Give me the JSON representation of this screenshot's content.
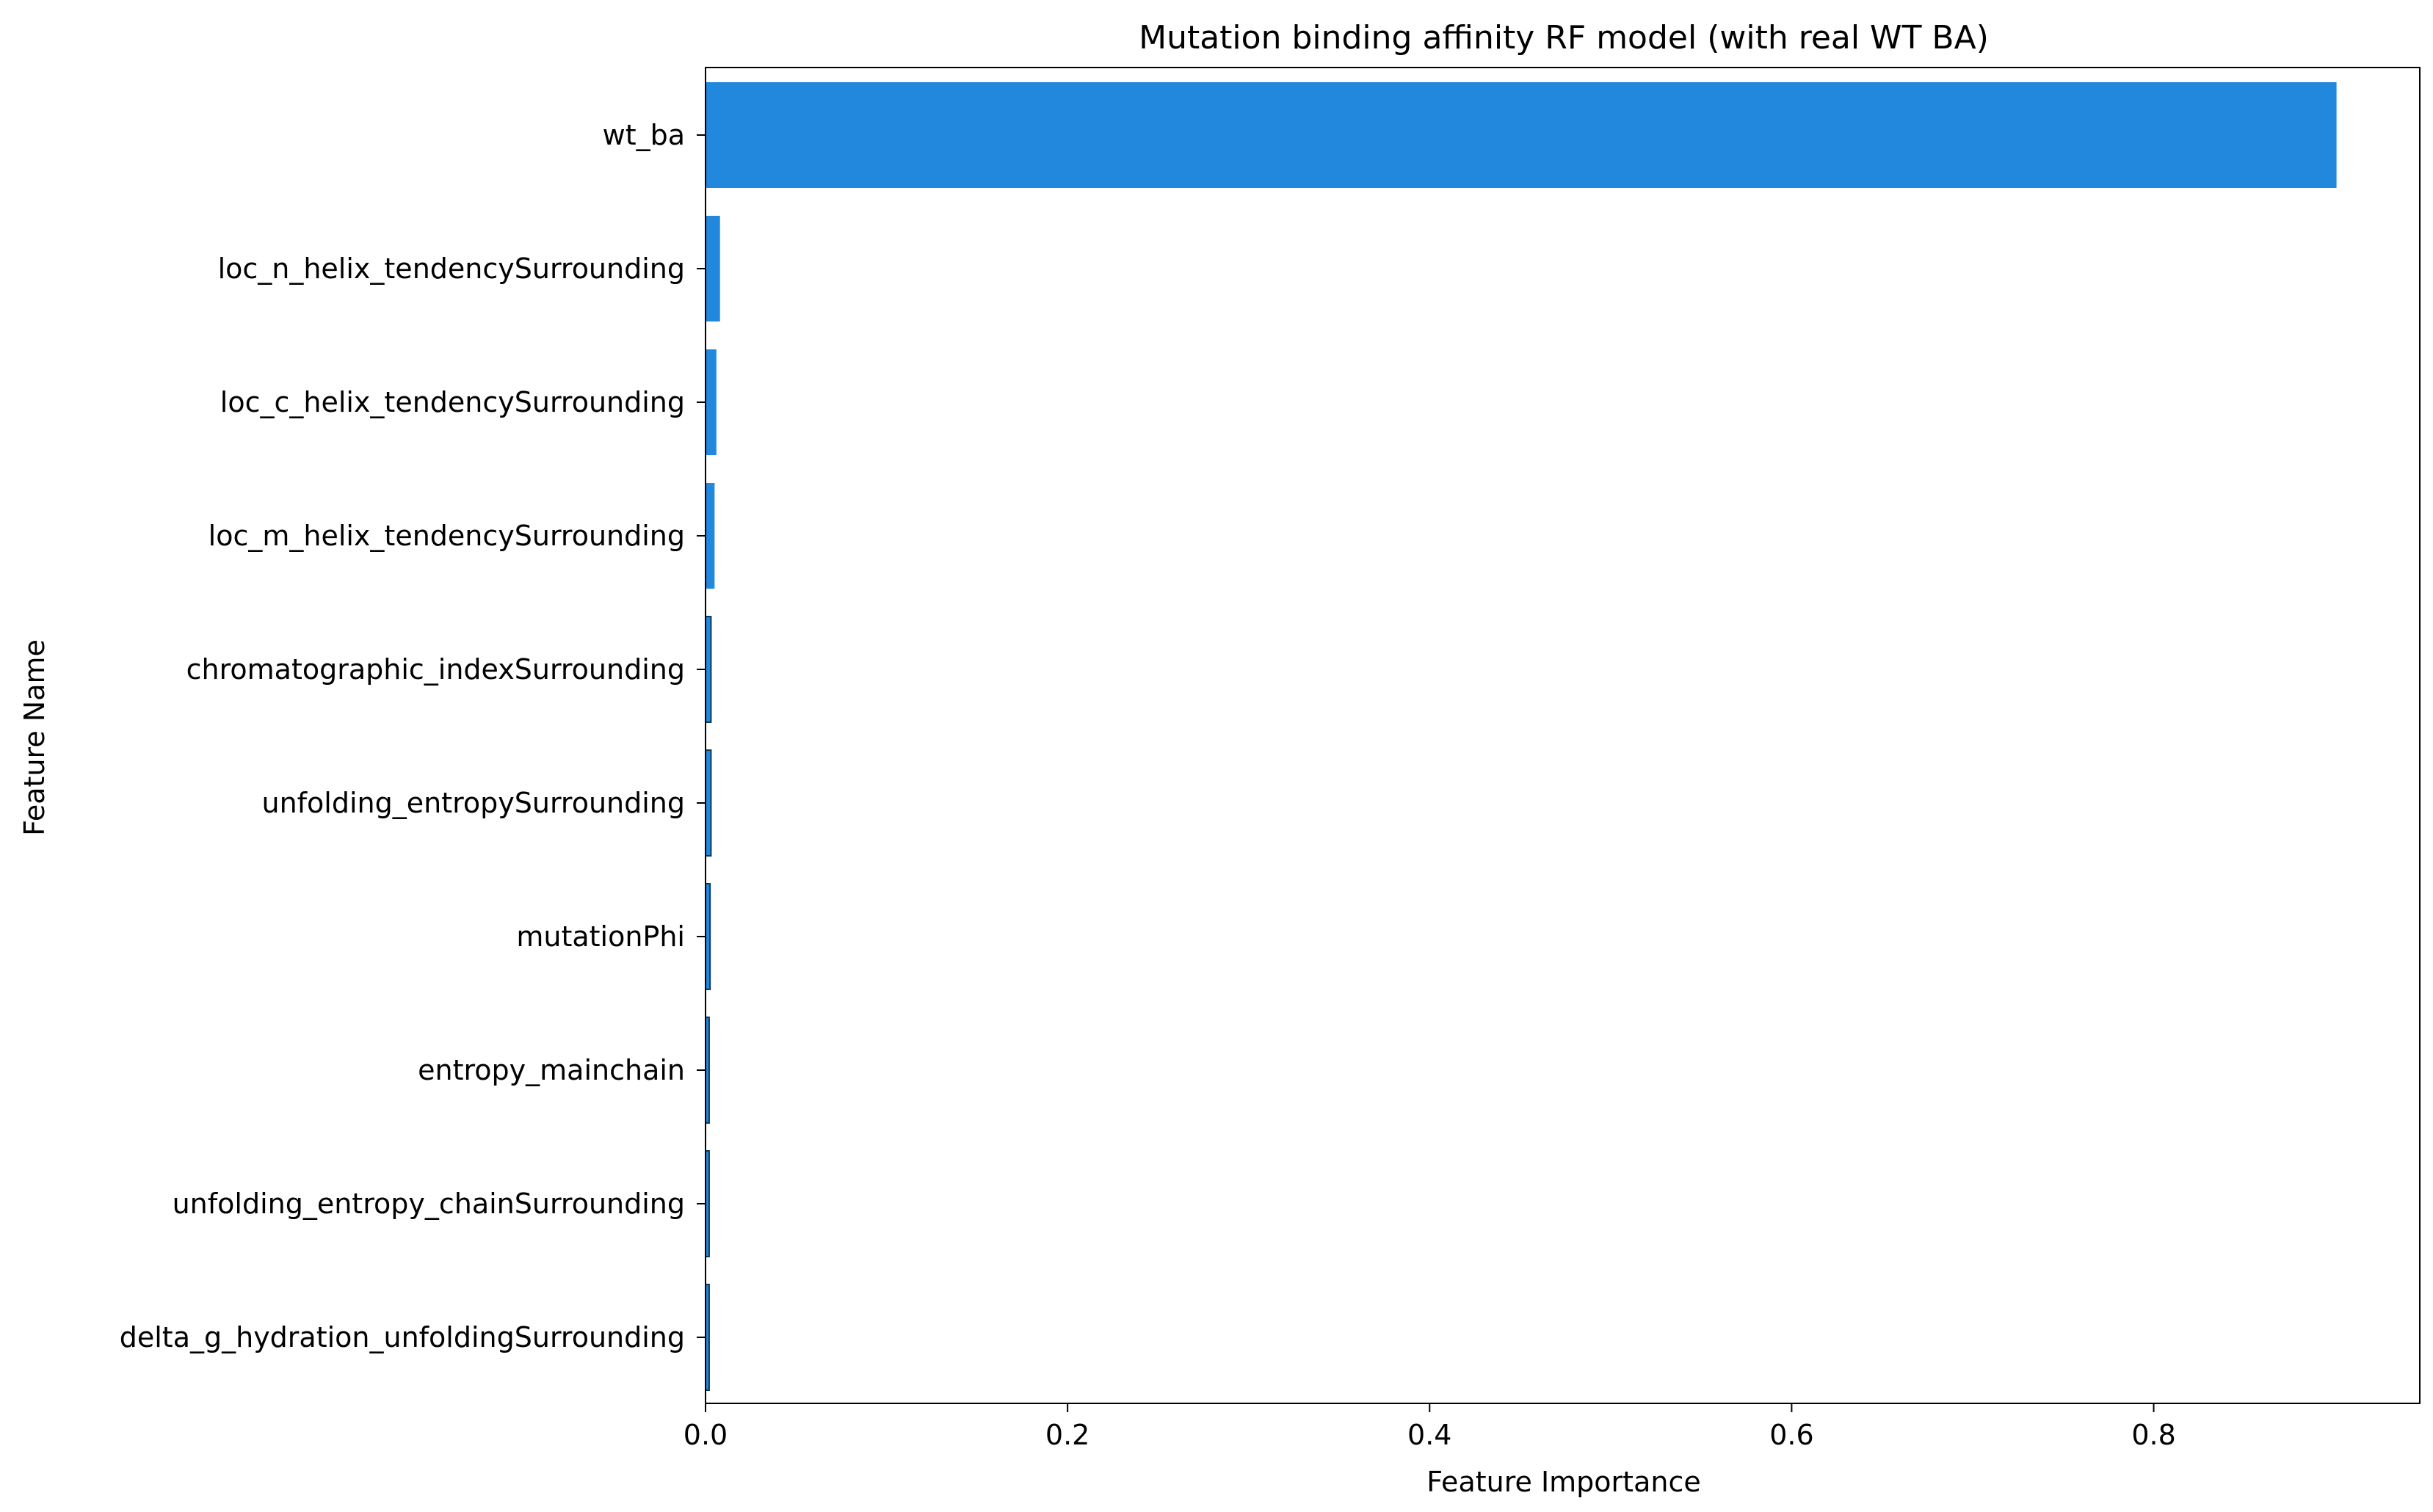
{
  "chart_data": {
    "type": "bar",
    "orientation": "horizontal",
    "title": "Mutation binding affinity RF model (with real WT BA)",
    "xlabel": "Feature Importance",
    "ylabel": "Feature Name",
    "xlim": [
      0,
      0.947
    ],
    "xticks": [
      0.0,
      0.2,
      0.4,
      0.6,
      0.8
    ],
    "xtick_labels": [
      "0.0",
      "0.2",
      "0.4",
      "0.6",
      "0.8"
    ],
    "categories": [
      "wt_ba",
      "loc_n_helix_tendencySurrounding",
      "loc_c_helix_tendencySurrounding",
      "loc_m_helix_tendencySurrounding",
      "chromatographic_indexSurrounding",
      "unfolding_entropySurrounding",
      "mutationPhi",
      "entropy_mainchain",
      "unfolding_entropy_chainSurrounding",
      "delta_g_hydration_unfoldingSurrounding"
    ],
    "values": [
      0.901,
      0.008,
      0.006,
      0.005,
      0.003,
      0.003,
      0.0025,
      0.002,
      0.002,
      0.002
    ],
    "bar_color": "#2288dd",
    "grid": false,
    "legend": "none"
  }
}
